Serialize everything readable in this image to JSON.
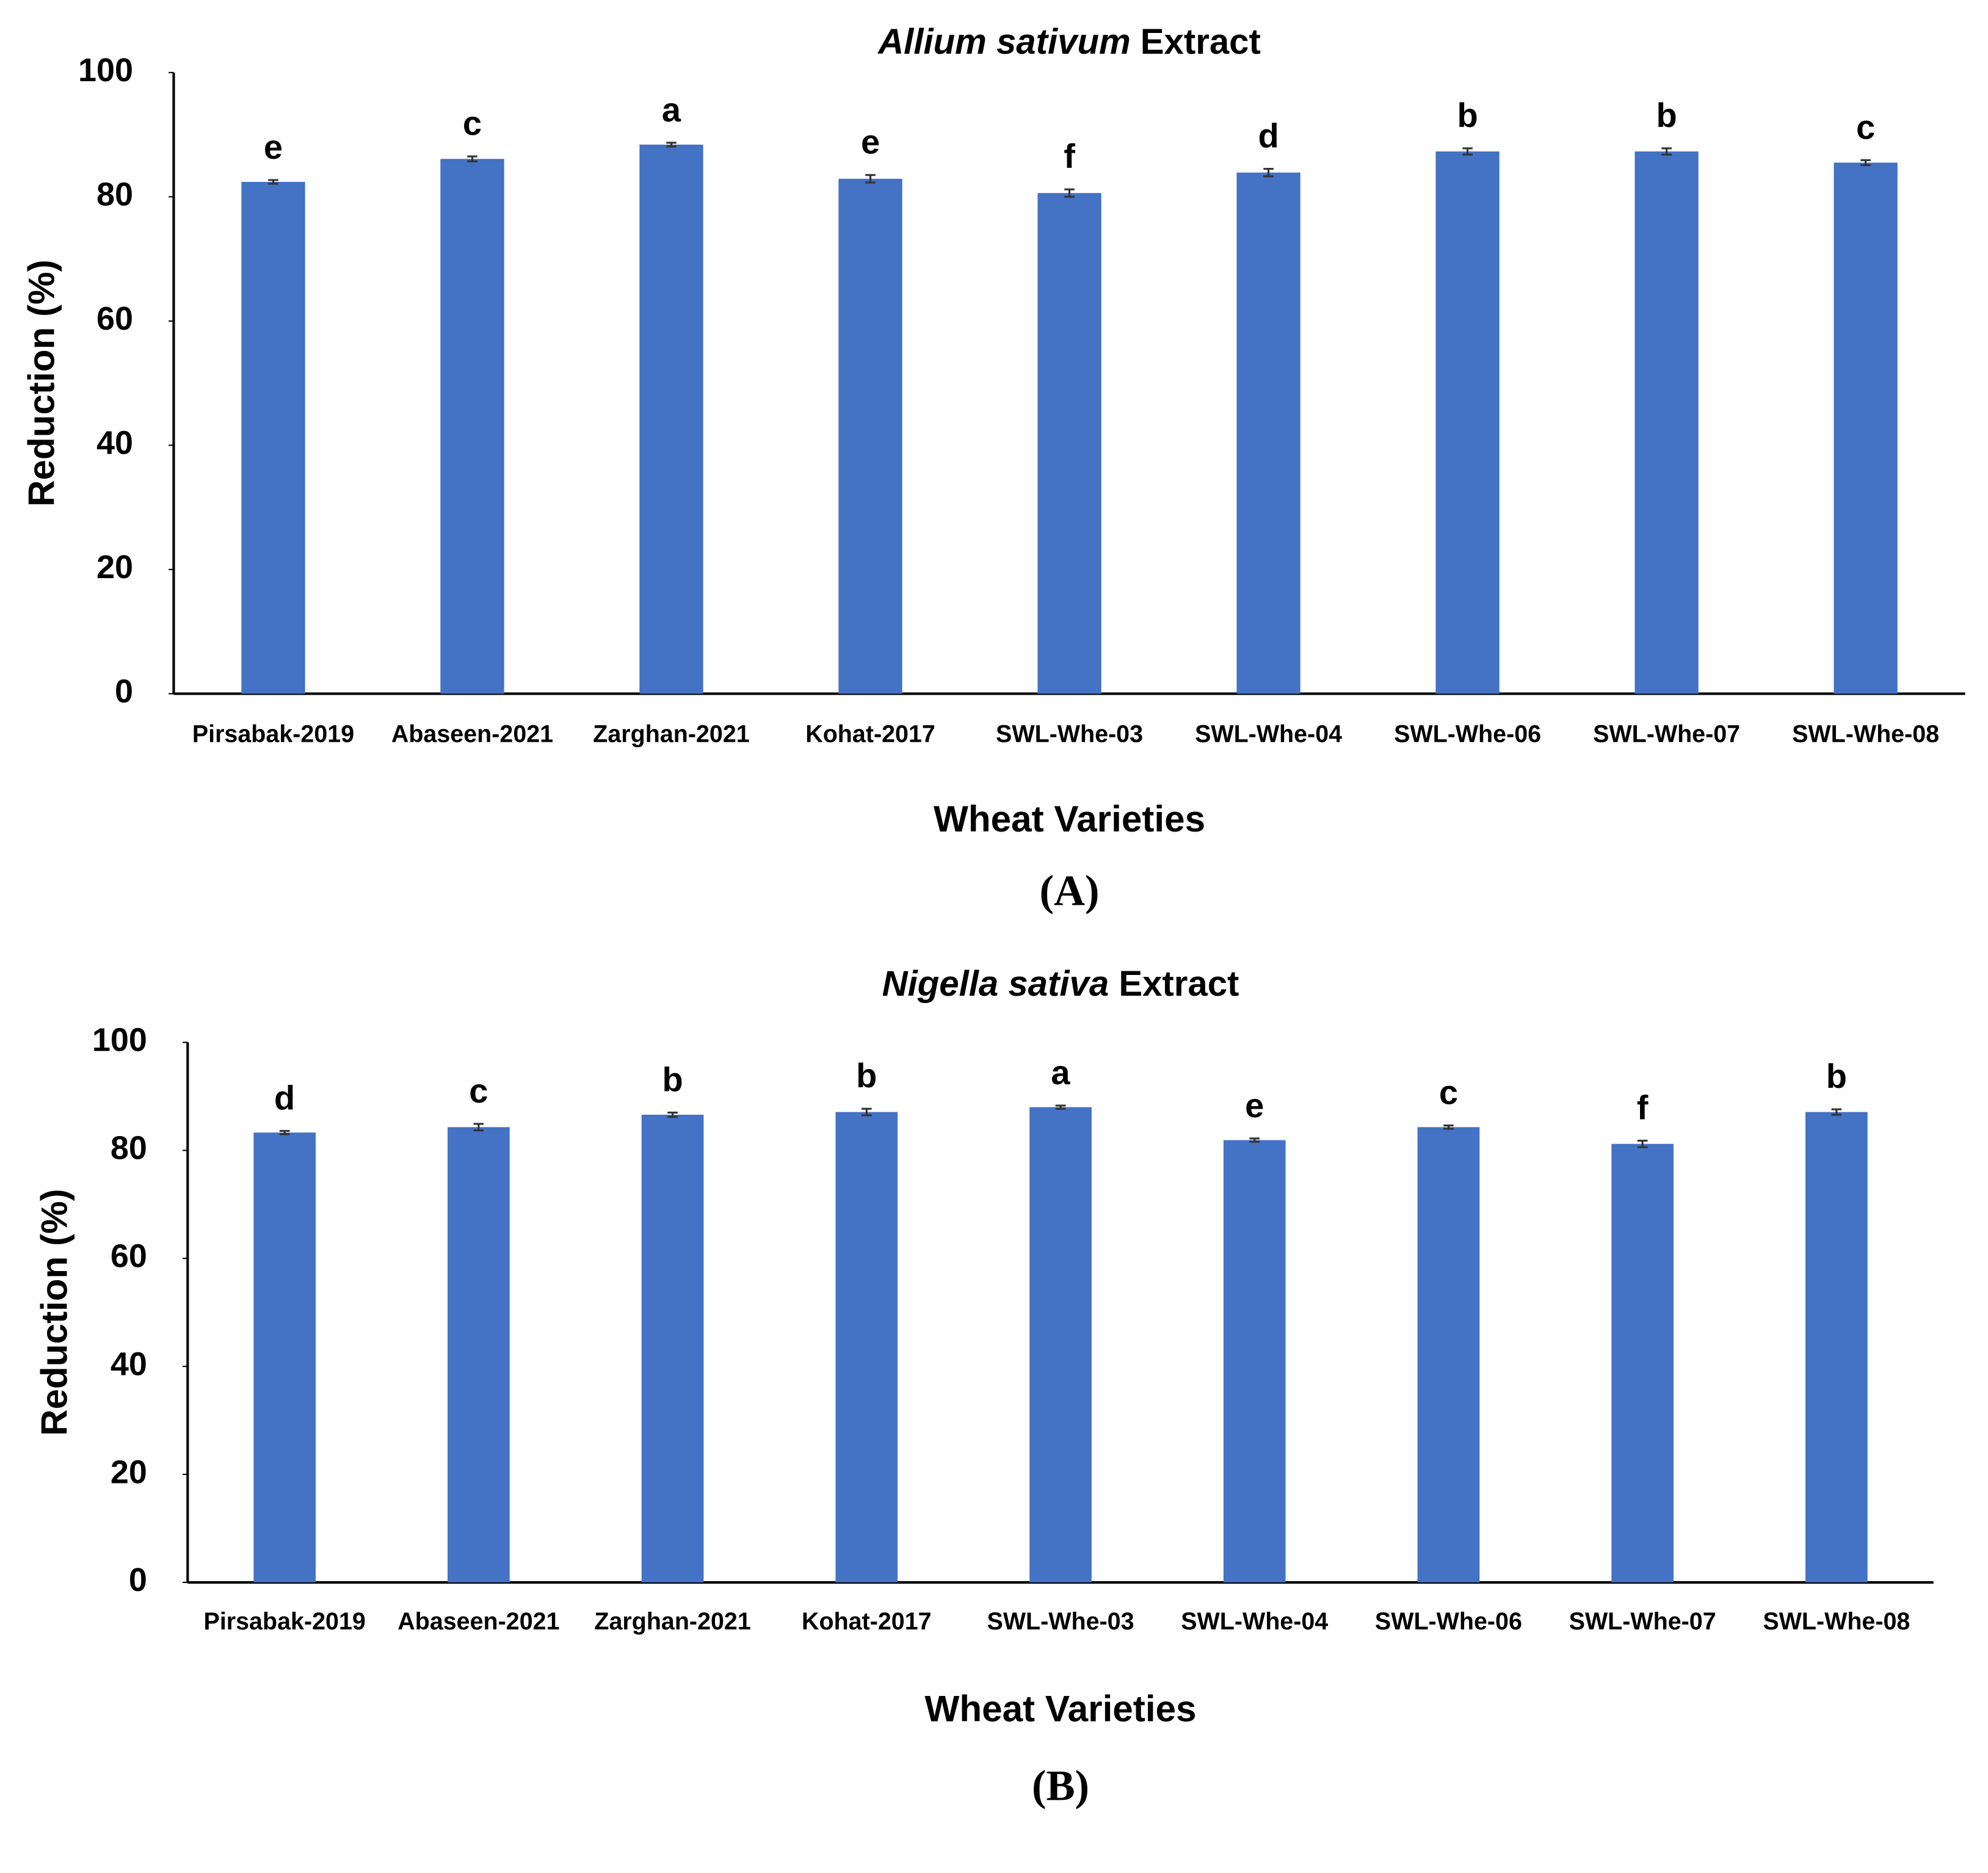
{
  "chart_data": [
    {
      "type": "bar",
      "title": "Allium sativum Extract",
      "x_label": "Wheat Varieties",
      "y_label": "Reduction (%)",
      "panel_label": "(A)",
      "categories": [
        "Pirsabak-2019",
        "Abaseen-2021",
        "Zarghan-2021",
        "Kohat-2017",
        "SWL-Whe-03",
        "SWL-Whe-04",
        "SWL-Whe-06",
        "SWL-Whe-07",
        "SWL-Whe-08"
      ],
      "values": [
        82.4,
        86.1,
        88.4,
        82.9,
        80.6,
        83.9,
        87.3,
        87.3,
        85.5
      ],
      "errors": [
        0.3,
        0.4,
        0.3,
        0.6,
        0.6,
        0.6,
        0.5,
        0.5,
        0.4
      ],
      "annotations": [
        "e",
        "c",
        "a",
        "e",
        "f",
        "d",
        "b",
        "b",
        "c"
      ],
      "color": "#4472c4",
      "ylim": [
        0,
        100
      ],
      "yticks": [
        0,
        20,
        40,
        60,
        80,
        100
      ],
      "grid": false
    },
    {
      "type": "bar",
      "title": "Nigella sativa Extract",
      "x_label": "Wheat Varieties",
      "y_label": "Reduction (%)",
      "panel_label": "(B)",
      "categories": [
        "Pirsabak-2019",
        "Abaseen-2021",
        "Zarghan-2021",
        "Kohat-2017",
        "SWL-Whe-03",
        "SWL-Whe-04",
        "SWL-Whe-06",
        "SWL-Whe-07",
        "SWL-Whe-08"
      ],
      "values": [
        83.3,
        84.3,
        86.6,
        87.1,
        88.0,
        81.9,
        84.3,
        81.2,
        87.1
      ],
      "errors": [
        0.3,
        0.6,
        0.4,
        0.6,
        0.3,
        0.3,
        0.3,
        0.6,
        0.5
      ],
      "annotations": [
        "d",
        "c",
        "b",
        "b",
        "a",
        "e",
        "c",
        "f",
        "b"
      ],
      "color": "#4472c4",
      "ylim": [
        0,
        100
      ],
      "yticks": [
        0,
        20,
        40,
        60,
        80,
        100
      ],
      "grid": false
    }
  ]
}
